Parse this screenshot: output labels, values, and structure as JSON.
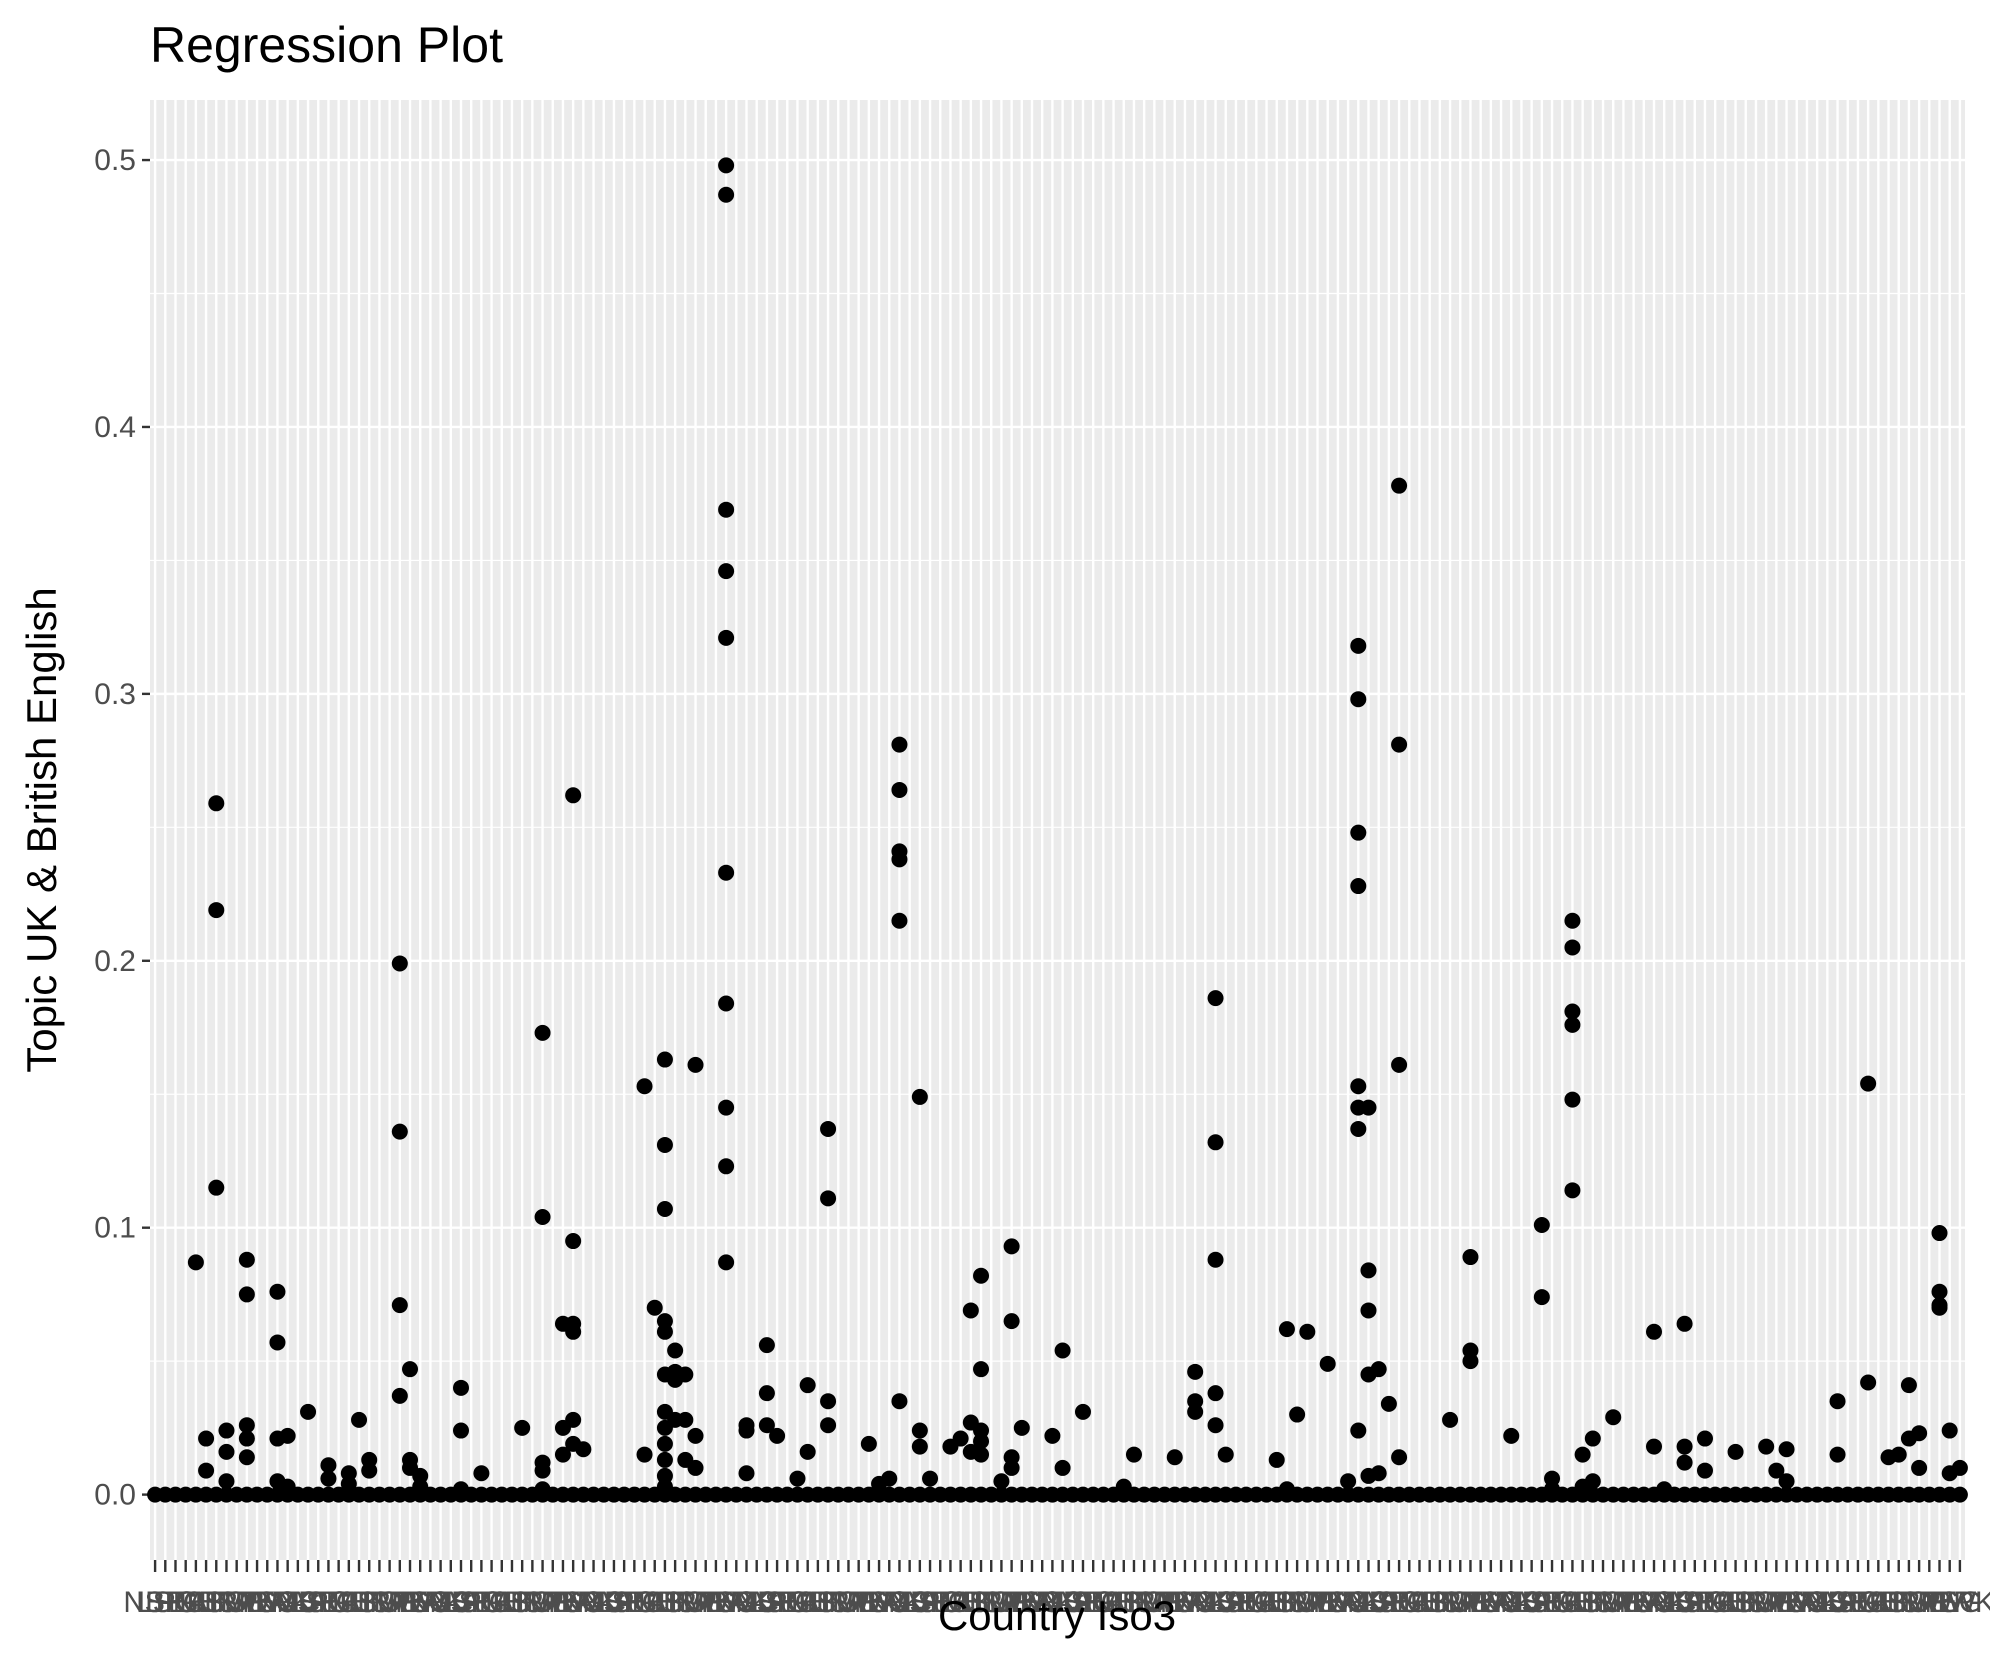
{
  "chart_data": {
    "type": "scatter",
    "title": "Regression Plot",
    "xlabel": "Country Iso3",
    "ylabel": "Topic UK & British English",
    "ylim": [
      -0.0245,
      0.5225
    ],
    "yticks": [
      0.0,
      0.1,
      0.2,
      0.3,
      0.4,
      0.5
    ],
    "ytick_labels": [
      "0.0",
      "0.1",
      "0.2",
      "0.3",
      "0.4",
      "0.5"
    ],
    "category_count": 178,
    "x_tick_labels_note": "178 overlapping country code labels, illegible",
    "grid": true,
    "panel_background": "#ebebeb",
    "grid_color": "#ffffff",
    "point_color": "#000000",
    "background": "#ffffff",
    "legend": "none",
    "points": [
      {
        "x": 5,
        "y": 0.087
      },
      {
        "x": 6,
        "y": 0.021
      },
      {
        "x": 6,
        "y": 0.009
      },
      {
        "x": 7,
        "y": 0.259
      },
      {
        "x": 7,
        "y": 0.219
      },
      {
        "x": 7,
        "y": 0.115
      },
      {
        "x": 8,
        "y": 0.024
      },
      {
        "x": 8,
        "y": 0.016
      },
      {
        "x": 8,
        "y": 0.005
      },
      {
        "x": 10,
        "y": 0.088
      },
      {
        "x": 10,
        "y": 0.075
      },
      {
        "x": 10,
        "y": 0.026
      },
      {
        "x": 10,
        "y": 0.021
      },
      {
        "x": 10,
        "y": 0.014
      },
      {
        "x": 13,
        "y": 0.076
      },
      {
        "x": 13,
        "y": 0.057
      },
      {
        "x": 13,
        "y": 0.021
      },
      {
        "x": 13,
        "y": 0.005
      },
      {
        "x": 14,
        "y": 0.022
      },
      {
        "x": 14,
        "y": 0.003
      },
      {
        "x": 16,
        "y": 0.031
      },
      {
        "x": 18,
        "y": 0.011
      },
      {
        "x": 18,
        "y": 0.006
      },
      {
        "x": 20,
        "y": 0.008
      },
      {
        "x": 20,
        "y": 0.004
      },
      {
        "x": 21,
        "y": 0.028
      },
      {
        "x": 22,
        "y": 0.013
      },
      {
        "x": 22,
        "y": 0.009
      },
      {
        "x": 25,
        "y": 0.199
      },
      {
        "x": 25,
        "y": 0.136
      },
      {
        "x": 25,
        "y": 0.071
      },
      {
        "x": 25,
        "y": 0.037
      },
      {
        "x": 26,
        "y": 0.047
      },
      {
        "x": 26,
        "y": 0.013
      },
      {
        "x": 26,
        "y": 0.01
      },
      {
        "x": 27,
        "y": 0.007
      },
      {
        "x": 27,
        "y": 0.003
      },
      {
        "x": 31,
        "y": 0.04
      },
      {
        "x": 31,
        "y": 0.024
      },
      {
        "x": 31,
        "y": 0.002
      },
      {
        "x": 33,
        "y": 0.008
      },
      {
        "x": 37,
        "y": 0.025
      },
      {
        "x": 39,
        "y": 0.173
      },
      {
        "x": 39,
        "y": 0.104
      },
      {
        "x": 39,
        "y": 0.012
      },
      {
        "x": 39,
        "y": 0.009
      },
      {
        "x": 39,
        "y": 0.002
      },
      {
        "x": 41,
        "y": 0.064
      },
      {
        "x": 41,
        "y": 0.025
      },
      {
        "x": 41,
        "y": 0.015
      },
      {
        "x": 42,
        "y": 0.262
      },
      {
        "x": 42,
        "y": 0.095
      },
      {
        "x": 42,
        "y": 0.064
      },
      {
        "x": 42,
        "y": 0.061
      },
      {
        "x": 42,
        "y": 0.028
      },
      {
        "x": 42,
        "y": 0.019
      },
      {
        "x": 43,
        "y": 0.017
      },
      {
        "x": 49,
        "y": 0.153
      },
      {
        "x": 49,
        "y": 0.015
      },
      {
        "x": 50,
        "y": 0.07
      },
      {
        "x": 51,
        "y": 0.163
      },
      {
        "x": 51,
        "y": 0.131
      },
      {
        "x": 51,
        "y": 0.107
      },
      {
        "x": 51,
        "y": 0.065
      },
      {
        "x": 51,
        "y": 0.061
      },
      {
        "x": 51,
        "y": 0.045
      },
      {
        "x": 51,
        "y": 0.031
      },
      {
        "x": 51,
        "y": 0.025
      },
      {
        "x": 51,
        "y": 0.019
      },
      {
        "x": 51,
        "y": 0.013
      },
      {
        "x": 51,
        "y": 0.007
      },
      {
        "x": 51,
        "y": 0.003
      },
      {
        "x": 52,
        "y": 0.054
      },
      {
        "x": 52,
        "y": 0.046
      },
      {
        "x": 52,
        "y": 0.043
      },
      {
        "x": 52,
        "y": 0.028
      },
      {
        "x": 53,
        "y": 0.045
      },
      {
        "x": 53,
        "y": 0.028
      },
      {
        "x": 53,
        "y": 0.013
      },
      {
        "x": 54,
        "y": 0.161
      },
      {
        "x": 54,
        "y": 0.022
      },
      {
        "x": 54,
        "y": 0.01
      },
      {
        "x": 57,
        "y": 0.498
      },
      {
        "x": 57,
        "y": 0.487
      },
      {
        "x": 57,
        "y": 0.369
      },
      {
        "x": 57,
        "y": 0.346
      },
      {
        "x": 57,
        "y": 0.321
      },
      {
        "x": 57,
        "y": 0.233
      },
      {
        "x": 57,
        "y": 0.184
      },
      {
        "x": 57,
        "y": 0.145
      },
      {
        "x": 57,
        "y": 0.123
      },
      {
        "x": 57,
        "y": 0.087
      },
      {
        "x": 59,
        "y": 0.026
      },
      {
        "x": 59,
        "y": 0.024
      },
      {
        "x": 59,
        "y": 0.008
      },
      {
        "x": 61,
        "y": 0.056
      },
      {
        "x": 61,
        "y": 0.038
      },
      {
        "x": 61,
        "y": 0.026
      },
      {
        "x": 62,
        "y": 0.022
      },
      {
        "x": 64,
        "y": 0.006
      },
      {
        "x": 65,
        "y": 0.041
      },
      {
        "x": 65,
        "y": 0.016
      },
      {
        "x": 67,
        "y": 0.137
      },
      {
        "x": 67,
        "y": 0.111
      },
      {
        "x": 67,
        "y": 0.035
      },
      {
        "x": 67,
        "y": 0.026
      },
      {
        "x": 71,
        "y": 0.019
      },
      {
        "x": 72,
        "y": 0.004
      },
      {
        "x": 73,
        "y": 0.006
      },
      {
        "x": 74,
        "y": 0.281
      },
      {
        "x": 74,
        "y": 0.264
      },
      {
        "x": 74,
        "y": 0.241
      },
      {
        "x": 74,
        "y": 0.238
      },
      {
        "x": 74,
        "y": 0.215
      },
      {
        "x": 74,
        "y": 0.035
      },
      {
        "x": 76,
        "y": 0.149
      },
      {
        "x": 76,
        "y": 0.024
      },
      {
        "x": 76,
        "y": 0.018
      },
      {
        "x": 77,
        "y": 0.006
      },
      {
        "x": 79,
        "y": 0.018
      },
      {
        "x": 80,
        "y": 0.021
      },
      {
        "x": 81,
        "y": 0.069
      },
      {
        "x": 81,
        "y": 0.027
      },
      {
        "x": 81,
        "y": 0.016
      },
      {
        "x": 82,
        "y": 0.082
      },
      {
        "x": 82,
        "y": 0.047
      },
      {
        "x": 82,
        "y": 0.024
      },
      {
        "x": 82,
        "y": 0.02
      },
      {
        "x": 82,
        "y": 0.015
      },
      {
        "x": 84,
        "y": 0.005
      },
      {
        "x": 85,
        "y": 0.093
      },
      {
        "x": 85,
        "y": 0.065
      },
      {
        "x": 85,
        "y": 0.014
      },
      {
        "x": 85,
        "y": 0.01
      },
      {
        "x": 86,
        "y": 0.025
      },
      {
        "x": 89,
        "y": 0.022
      },
      {
        "x": 90,
        "y": 0.054
      },
      {
        "x": 90,
        "y": 0.01
      },
      {
        "x": 92,
        "y": 0.031
      },
      {
        "x": 96,
        "y": 0.003
      },
      {
        "x": 97,
        "y": 0.015
      },
      {
        "x": 101,
        "y": 0.014
      },
      {
        "x": 103,
        "y": 0.046
      },
      {
        "x": 103,
        "y": 0.035
      },
      {
        "x": 103,
        "y": 0.031
      },
      {
        "x": 105,
        "y": 0.186
      },
      {
        "x": 105,
        "y": 0.132
      },
      {
        "x": 105,
        "y": 0.088
      },
      {
        "x": 105,
        "y": 0.038
      },
      {
        "x": 105,
        "y": 0.026
      },
      {
        "x": 106,
        "y": 0.015
      },
      {
        "x": 111,
        "y": 0.013
      },
      {
        "x": 112,
        "y": 0.062
      },
      {
        "x": 112,
        "y": 0.002
      },
      {
        "x": 113,
        "y": 0.03
      },
      {
        "x": 114,
        "y": 0.061
      },
      {
        "x": 116,
        "y": 0.049
      },
      {
        "x": 118,
        "y": 0.005
      },
      {
        "x": 119,
        "y": 0.318
      },
      {
        "x": 119,
        "y": 0.298
      },
      {
        "x": 119,
        "y": 0.248
      },
      {
        "x": 119,
        "y": 0.228
      },
      {
        "x": 119,
        "y": 0.153
      },
      {
        "x": 119,
        "y": 0.145
      },
      {
        "x": 119,
        "y": 0.137
      },
      {
        "x": 119,
        "y": 0.024
      },
      {
        "x": 120,
        "y": 0.145
      },
      {
        "x": 120,
        "y": 0.084
      },
      {
        "x": 120,
        "y": 0.069
      },
      {
        "x": 120,
        "y": 0.045
      },
      {
        "x": 120,
        "y": 0.007
      },
      {
        "x": 121,
        "y": 0.047
      },
      {
        "x": 121,
        "y": 0.008
      },
      {
        "x": 122,
        "y": 0.034
      },
      {
        "x": 123,
        "y": 0.378
      },
      {
        "x": 123,
        "y": 0.281
      },
      {
        "x": 123,
        "y": 0.161
      },
      {
        "x": 123,
        "y": 0.014
      },
      {
        "x": 128,
        "y": 0.028
      },
      {
        "x": 130,
        "y": 0.089
      },
      {
        "x": 130,
        "y": 0.054
      },
      {
        "x": 130,
        "y": 0.05
      },
      {
        "x": 134,
        "y": 0.022
      },
      {
        "x": 137,
        "y": 0.101
      },
      {
        "x": 137,
        "y": 0.074
      },
      {
        "x": 138,
        "y": 0.006
      },
      {
        "x": 138,
        "y": 0.002
      },
      {
        "x": 140,
        "y": 0.215
      },
      {
        "x": 140,
        "y": 0.205
      },
      {
        "x": 140,
        "y": 0.181
      },
      {
        "x": 140,
        "y": 0.176
      },
      {
        "x": 140,
        "y": 0.148
      },
      {
        "x": 140,
        "y": 0.114
      },
      {
        "x": 141,
        "y": 0.015
      },
      {
        "x": 141,
        "y": 0.003
      },
      {
        "x": 142,
        "y": 0.021
      },
      {
        "x": 142,
        "y": 0.005
      },
      {
        "x": 144,
        "y": 0.029
      },
      {
        "x": 148,
        "y": 0.061
      },
      {
        "x": 148,
        "y": 0.018
      },
      {
        "x": 149,
        "y": 0.002
      },
      {
        "x": 151,
        "y": 0.064
      },
      {
        "x": 151,
        "y": 0.018
      },
      {
        "x": 151,
        "y": 0.012
      },
      {
        "x": 153,
        "y": 0.021
      },
      {
        "x": 153,
        "y": 0.009
      },
      {
        "x": 156,
        "y": 0.016
      },
      {
        "x": 159,
        "y": 0.018
      },
      {
        "x": 160,
        "y": 0.009
      },
      {
        "x": 161,
        "y": 0.017
      },
      {
        "x": 161,
        "y": 0.005
      },
      {
        "x": 166,
        "y": 0.035
      },
      {
        "x": 166,
        "y": 0.015
      },
      {
        "x": 169,
        "y": 0.154
      },
      {
        "x": 169,
        "y": 0.042
      },
      {
        "x": 171,
        "y": 0.014
      },
      {
        "x": 172,
        "y": 0.015
      },
      {
        "x": 173,
        "y": 0.041
      },
      {
        "x": 173,
        "y": 0.021
      },
      {
        "x": 174,
        "y": 0.023
      },
      {
        "x": 174,
        "y": 0.01
      },
      {
        "x": 176,
        "y": 0.098
      },
      {
        "x": 176,
        "y": 0.076
      },
      {
        "x": 176,
        "y": 0.071
      },
      {
        "x": 176,
        "y": 0.07
      },
      {
        "x": 177,
        "y": 0.024
      },
      {
        "x": 177,
        "y": 0.008
      },
      {
        "x": 178,
        "y": 0.01
      }
    ]
  }
}
